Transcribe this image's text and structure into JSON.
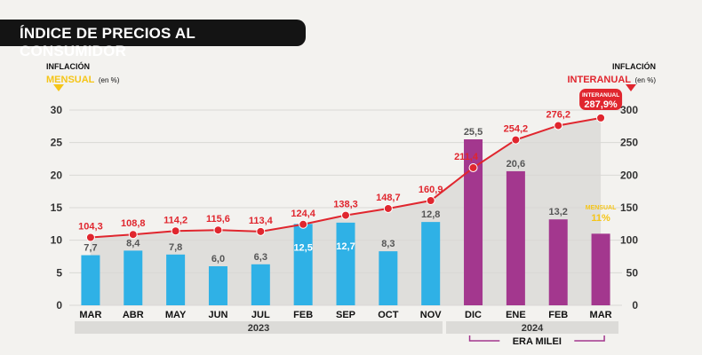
{
  "title": "ÍNDICE DE PRECIOS AL CONSUMIDOR",
  "left_axis": {
    "line1": "INFLACIÓN",
    "line2": "MENSUAL",
    "unit": "(en %)"
  },
  "right_axis": {
    "line1": "INFLACIÓN",
    "line2": "INTERANUAL",
    "unit": "(en %)"
  },
  "colors": {
    "bar_2023": "#2fb1e6",
    "bar_milei": "#a3378e",
    "line": "#e0262e",
    "accent_yellow": "#f5c518",
    "title_bg": "#141414",
    "group_band": "#dcdbd8"
  },
  "annotations": {
    "last_interanual_tag": "INTERANUAL",
    "last_interanual_value": "287,9%",
    "last_mensual_tag": "MENSUAL",
    "last_mensual_value": "11%"
  },
  "groups": {
    "year_2023": "2023",
    "year_2024": "2024",
    "era": "ERA MILEI"
  },
  "chart_data": {
    "type": "bar",
    "categories": [
      "MAR",
      "ABR",
      "MAY",
      "JUN",
      "JUL",
      "FEB",
      "SEP",
      "OCT",
      "NOV",
      "DIC",
      "ENE",
      "FEB",
      "MAR"
    ],
    "series": [
      {
        "name": "MENSUAL",
        "axis": "left",
        "values": [
          7.7,
          8.4,
          7.8,
          6.0,
          6.3,
          12.5,
          12.7,
          8.3,
          12.8,
          25.5,
          20.6,
          13.2,
          11
        ],
        "labels": [
          "7,7",
          "8,4",
          "7,8",
          "6,0",
          "6,3",
          "12,5",
          "12,7",
          "8,3",
          "12,8",
          "25,5",
          "20,6",
          "13,2",
          ""
        ]
      },
      {
        "name": "INTERANUAL",
        "axis": "right",
        "type": "line",
        "values": [
          104.3,
          108.8,
          114.2,
          115.6,
          113.4,
          124.4,
          138.3,
          148.7,
          160.9,
          211.4,
          254.2,
          276.2,
          287.9
        ],
        "labels": [
          "104,3",
          "108,8",
          "114,2",
          "115,6",
          "113,4",
          "124,4",
          "138,3",
          "148,7",
          "160,9",
          "211,4",
          "254,2",
          "276,2",
          ""
        ]
      }
    ],
    "left_ticks": [
      "0",
      "5",
      "10",
      "15",
      "20",
      "25",
      "30"
    ],
    "right_ticks": [
      "0",
      "50",
      "100",
      "150",
      "200",
      "250",
      "300"
    ],
    "ylim_left": [
      0,
      30
    ],
    "ylim_right": [
      0,
      300
    ],
    "grid": true
  }
}
